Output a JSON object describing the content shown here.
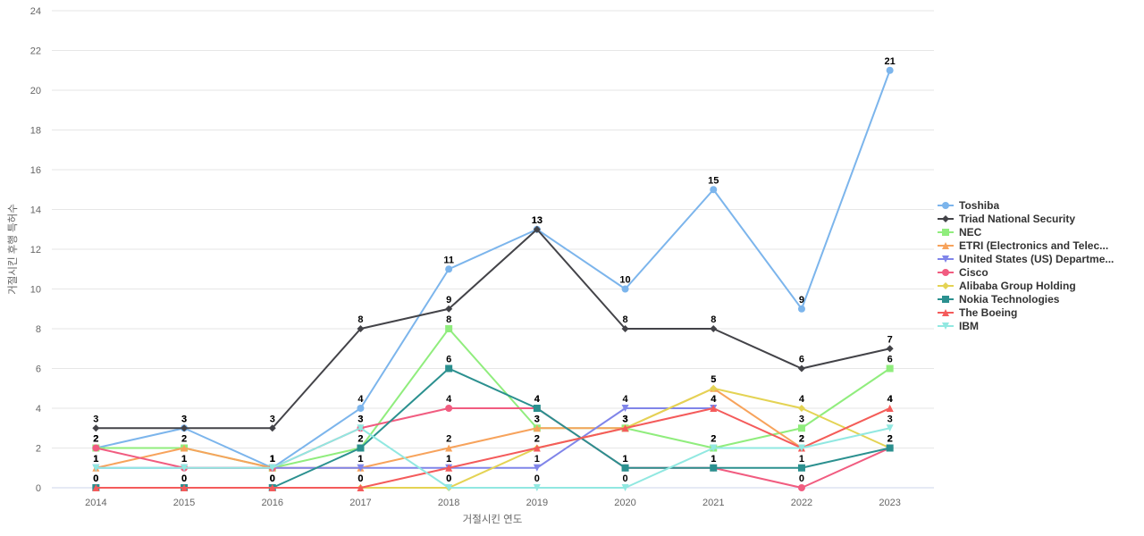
{
  "chart_data": {
    "type": "line",
    "title": "",
    "xlabel": "거절시킨 연도",
    "ylabel": "거절시킨 후행 특허수",
    "x_categories": [
      "2014",
      "2015",
      "2016",
      "2017",
      "2018",
      "2019",
      "2020",
      "2021",
      "2022",
      "2023"
    ],
    "ylim": [
      0,
      24
    ],
    "ytick_step": 2,
    "grid": true,
    "legend_position": "right",
    "data_labels": true,
    "colors": {
      "grid": "#e6e6e6",
      "axis_line": "#ccd6eb",
      "tick_text": "#666666",
      "axis_title_text": "#666666",
      "data_label_text": "#000000",
      "legend_text": "#333333",
      "background": "#ffffff"
    },
    "series": [
      {
        "name": "Toshiba",
        "color": "#7cb5ec",
        "marker": "circle",
        "values": [
          2,
          3,
          1,
          4,
          11,
          13,
          10,
          15,
          9,
          21
        ]
      },
      {
        "name": "Triad National Security",
        "color": "#434348",
        "marker": "diamond",
        "values": [
          3,
          3,
          3,
          8,
          9,
          13,
          8,
          8,
          6,
          7
        ]
      },
      {
        "name": "NEC",
        "color": "#90ed7d",
        "marker": "square",
        "values": [
          2,
          2,
          1,
          2,
          8,
          3,
          3,
          2,
          3,
          6
        ]
      },
      {
        "name": "ETRI (Electronics and Telec...",
        "color": "#f7a35c",
        "marker": "triangle",
        "values": [
          1,
          2,
          1,
          1,
          2,
          3,
          3,
          5,
          2,
          4
        ]
      },
      {
        "name": "United States (US) Departme...",
        "color": "#8085e9",
        "marker": "triangle-down",
        "values": [
          1,
          1,
          1,
          1,
          1,
          1,
          4,
          4,
          null,
          null
        ]
      },
      {
        "name": "Cisco",
        "color": "#f15c80",
        "marker": "circle",
        "values": [
          2,
          1,
          1,
          3,
          4,
          4,
          1,
          1,
          0,
          2
        ]
      },
      {
        "name": "Alibaba Group Holding",
        "color": "#e4d354",
        "marker": "diamond",
        "values": [
          0,
          0,
          0,
          0,
          0,
          2,
          3,
          5,
          4,
          2
        ]
      },
      {
        "name": "Nokia Technologies",
        "color": "#2b908f",
        "marker": "square",
        "values": [
          0,
          0,
          0,
          2,
          6,
          4,
          1,
          1,
          1,
          2
        ]
      },
      {
        "name": "The Boeing",
        "color": "#f45b5b",
        "marker": "triangle",
        "values": [
          0,
          0,
          0,
          0,
          1,
          2,
          3,
          4,
          2,
          4
        ]
      },
      {
        "name": "IBM",
        "color": "#91e8e1",
        "marker": "triangle-down",
        "values": [
          1,
          1,
          1,
          3,
          0,
          0,
          0,
          2,
          2,
          3
        ]
      }
    ]
  }
}
